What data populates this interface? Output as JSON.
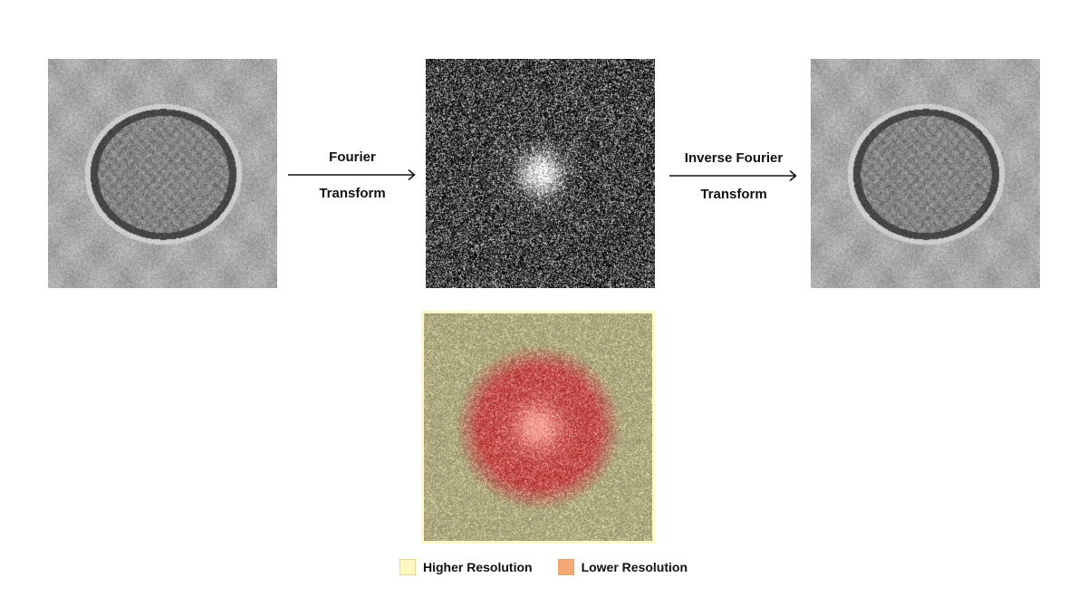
{
  "steps": {
    "forward": {
      "line1": "Fourier",
      "line2": "Transform"
    },
    "inverse": {
      "line1": "Inverse Fourier",
      "line2": "Transform"
    }
  },
  "legend": {
    "items": [
      {
        "label": "Higher Resolution",
        "color": "#fff7c2"
      },
      {
        "label": "Lower Resolution",
        "color": "#f5aa75"
      }
    ]
  }
}
